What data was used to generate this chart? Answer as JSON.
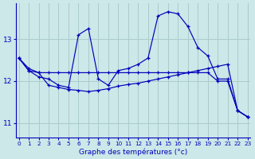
{
  "xlabel": "Graphe des températures (°c)",
  "background_color": "#cce8e8",
  "grid_color": "#aacccc",
  "line_color": "#0000bb",
  "x_ticks": [
    0,
    1,
    2,
    3,
    4,
    5,
    6,
    7,
    8,
    9,
    10,
    11,
    12,
    13,
    14,
    15,
    16,
    17,
    18,
    19,
    20,
    21,
    22,
    23
  ],
  "y_ticks": [
    11,
    12,
    13
  ],
  "ylim": [
    10.65,
    13.85
  ],
  "xlim": [
    -0.3,
    23.3
  ],
  "series": [
    {
      "x": [
        0,
        1,
        2,
        3,
        4,
        5,
        6,
        7,
        8,
        9,
        10,
        11,
        12,
        13,
        14,
        15,
        16,
        17,
        18,
        19,
        20,
        21,
        22,
        23
      ],
      "y": [
        12.55,
        12.25,
        12.2,
        12.2,
        12.2,
        12.2,
        12.2,
        12.2,
        12.2,
        12.2,
        12.2,
        12.2,
        12.2,
        12.2,
        12.2,
        12.2,
        12.2,
        12.2,
        12.2,
        12.2,
        12.0,
        12.0,
        11.3,
        11.15
      ]
    },
    {
      "x": [
        0,
        1,
        2,
        3,
        4,
        5,
        6,
        7,
        8,
        9,
        10,
        11,
        12,
        13,
        14,
        15,
        16,
        17,
        18,
        19,
        20,
        21,
        22,
        23
      ],
      "y": [
        12.55,
        12.25,
        12.1,
        12.05,
        11.9,
        11.85,
        13.1,
        13.25,
        12.05,
        11.9,
        12.25,
        12.3,
        12.4,
        12.55,
        13.55,
        13.65,
        13.6,
        13.3,
        12.8,
        12.6,
        12.05,
        12.05,
        11.3,
        11.15
      ]
    },
    {
      "x": [
        0,
        1,
        2,
        3,
        4,
        5,
        6,
        7,
        8,
        9,
        10,
        11,
        12,
        13,
        14,
        15,
        16,
        17,
        18,
        19,
        20,
        21,
        22,
        23
      ],
      "y": [
        12.55,
        12.3,
        12.2,
        11.9,
        11.85,
        11.8,
        11.78,
        11.75,
        11.78,
        11.82,
        11.88,
        11.92,
        11.95,
        12.0,
        12.05,
        12.1,
        12.15,
        12.2,
        12.25,
        12.3,
        12.35,
        12.4,
        11.3,
        11.15
      ]
    }
  ]
}
